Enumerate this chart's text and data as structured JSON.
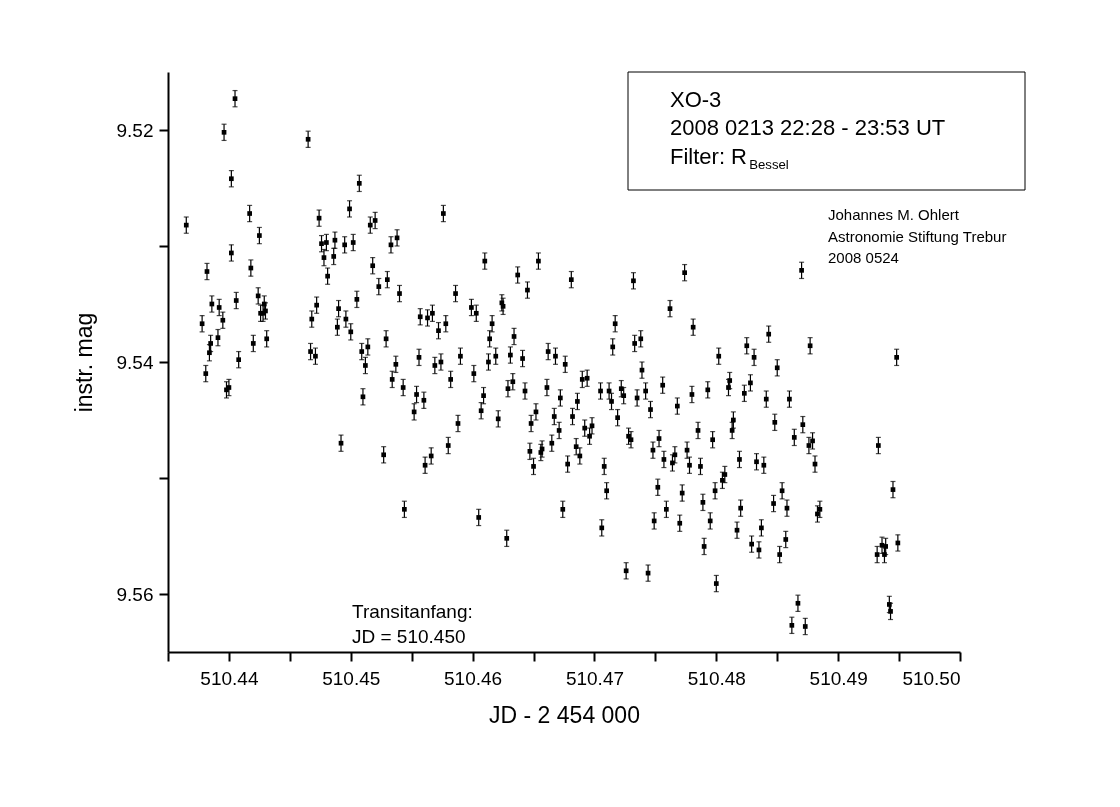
{
  "chart_data": {
    "type": "scatter",
    "xlabel": "JD - 2 454 000",
    "ylabel": "instr. mag",
    "marker": "square",
    "xlim": [
      510.435,
      510.5
    ],
    "ylim": [
      9.565,
      9.515
    ],
    "xticks": [
      {
        "value": 510.435,
        "label": null
      },
      510.44,
      {
        "value": 510.445,
        "label": null
      },
      510.45,
      {
        "value": 510.455,
        "label": null
      },
      510.46,
      {
        "value": 510.465,
        "label": null
      },
      510.47,
      {
        "value": 510.475,
        "label": null
      },
      510.48,
      {
        "value": 510.485,
        "label": null
      },
      510.49,
      {
        "value": 510.495,
        "label": null
      },
      {
        "value": 510.5,
        "label": "510.50"
      }
    ],
    "yticks": [
      9.52,
      {
        "value": 9.53,
        "label": null
      },
      9.54,
      {
        "value": 9.55,
        "label": null
      },
      9.56
    ],
    "annotations": [
      "XO-3",
      "2008 0213   22:28 - 23:53 UT",
      "Filter: R$_{Bessel}$",
      "Johannes M. Ohlert",
      "Astronomie Stiftung Trebur",
      "2008 0524",
      "Transitanfang:",
      "JD = 510.450"
    ],
    "x": [
      510.4365,
      510.4378,
      510.4381,
      510.4382,
      510.4384,
      510.4385,
      510.4386,
      510.4391,
      510.4392,
      510.4395,
      510.4396,
      510.4398,
      510.44,
      510.4402,
      510.4402,
      510.4405,
      510.4406,
      510.4408,
      510.4417,
      510.4418,
      510.442,
      510.4424,
      510.4425,
      510.4426,
      510.4428,
      510.4429,
      510.443,
      510.4431,
      510.4465,
      510.4467,
      510.4468,
      510.4471,
      510.4472,
      510.4474,
      510.4476,
      510.4478,
      510.448,
      510.4481,
      510.4486,
      510.4487,
      510.4489,
      510.449,
      510.4492,
      510.4495,
      510.4496,
      510.4499,
      510.45,
      510.4502,
      510.4505,
      510.4507,
      510.4509,
      510.451,
      510.4512,
      510.4514,
      510.4516,
      510.4518,
      510.452,
      510.4523,
      510.4527,
      510.4529,
      510.453,
      510.4533,
      510.4534,
      510.4537,
      510.4538,
      510.454,
      510.4543,
      510.4544,
      510.4552,
      510.4554,
      510.4556,
      510.4557,
      510.456,
      510.4561,
      510.4563,
      510.4566,
      510.4567,
      510.4569,
      510.4572,
      510.4574,
      510.4576,
      510.4578,
      510.458,
      510.4582,
      510.4586,
      510.4588,
      510.459,
      510.4599,
      510.4601,
      510.4603,
      510.4605,
      510.4607,
      510.4609,
      510.461,
      510.4613,
      510.4614,
      510.4616,
      510.4619,
      510.4621,
      510.4624,
      510.4625,
      510.4628,
      510.4629,
      510.4631,
      510.4633,
      510.4634,
      510.4637,
      510.4641,
      510.4643,
      510.4645,
      510.4647,
      510.4648,
      510.465,
      510.4652,
      510.4654,
      510.4656,
      510.4657,
      510.4661,
      510.4662,
      510.4665,
      510.4667,
      510.4668,
      510.4671,
      510.4672,
      510.4674,
      510.4676,
      510.4678,
      510.4681,
      510.4682,
      510.4685,
      510.4686,
      510.4688,
      510.469,
      510.4692,
      510.4694,
      510.4696,
      510.4698,
      510.4705,
      510.4706,
      510.4708,
      510.471,
      510.4712,
      510.4714,
      510.4715,
      510.4717,
      510.4719,
      510.4722,
      510.4724,
      510.4726,
      510.4728,
      510.473,
      510.4732,
      510.4733,
      510.4735,
      510.4738,
      510.4739,
      510.4742,
      510.4744,
      510.4746,
      510.4748,
      510.4749,
      510.4752,
      510.4753,
      510.4756,
      510.4757,
      510.4759,
      510.4762,
      510.4764,
      510.4766,
      510.4768,
      510.477,
      510.4772,
      510.4774,
      510.4776,
      510.4778,
      510.478,
      510.4781,
      510.4785,
      510.4787,
      510.4789,
      510.479,
      510.4793,
      510.4795,
      510.4797,
      510.4799,
      510.48,
      510.4802,
      510.4805,
      510.4807,
      510.481,
      510.4811,
      510.4813,
      510.4814,
      510.4817,
      510.4819,
      510.482,
      510.4823,
      510.4825,
      510.4828,
      510.4829,
      510.4831,
      510.4833,
      510.4835,
      510.4837,
      510.4839,
      510.4841,
      510.4843,
      510.4847,
      510.4848,
      510.485,
      510.4852,
      510.4854,
      510.4857,
      510.4858,
      510.486,
      510.4862,
      510.4864,
      510.4867,
      510.487,
      510.4871,
      510.4873,
      510.4876,
      510.4877,
      510.4879,
      510.4881,
      510.4883,
      510.4885,
      510.4932,
      510.4933,
      510.4936,
      510.4938,
      510.4939,
      510.4942,
      510.4943,
      510.4945,
      510.4948,
      510.4949
    ],
    "series": [
      {
        "color": "#000000",
        "values": [
          9.5282,
          9.5367,
          9.541,
          9.5322,
          9.5392,
          9.5384,
          9.535,
          9.5379,
          9.5353,
          9.5364,
          9.5202,
          9.5424,
          9.5422,
          9.5306,
          9.5242,
          9.5173,
          9.5347,
          9.5398,
          9.5272,
          9.5319,
          9.5384,
          9.5343,
          9.5291,
          9.5358,
          9.5358,
          9.535,
          9.5356,
          9.538,
          9.5208,
          9.5391,
          9.5363,
          9.5395,
          9.5351,
          9.5276,
          9.5298,
          9.531,
          9.5297,
          9.5326,
          9.5309,
          9.5295,
          9.537,
          9.5354,
          9.547,
          9.5299,
          9.5363,
          9.5268,
          9.5374,
          9.5297,
          9.5346,
          9.5246,
          9.5391,
          9.543,
          9.5403,
          9.5387,
          9.5282,
          9.5317,
          9.5278,
          9.5335,
          9.548,
          9.538,
          9.5329,
          9.5299,
          9.5415,
          9.5402,
          9.5293,
          9.5341,
          9.5422,
          9.5527,
          9.5443,
          9.5428,
          9.5396,
          9.5361,
          9.5433,
          9.5489,
          9.5362,
          9.5481,
          9.5358,
          9.5403,
          9.5373,
          9.54,
          9.5272,
          9.5367,
          9.5472,
          9.5415,
          9.5341,
          9.5453,
          9.5395,
          9.5353,
          9.541,
          9.5358,
          9.5534,
          9.5442,
          9.5429,
          9.5313,
          9.54,
          9.538,
          9.5367,
          9.5395,
          9.5449,
          9.5349,
          9.5352,
          9.5552,
          9.5423,
          9.5394,
          9.5417,
          9.5378,
          9.5325,
          9.5397,
          9.5425,
          9.5338,
          9.5477,
          9.5453,
          9.549,
          9.5443,
          9.5313,
          9.5478,
          9.5475,
          9.5422,
          9.5391,
          9.547,
          9.5447,
          9.5395,
          9.5459,
          9.5431,
          9.5527,
          9.5402,
          9.5488,
          9.5329,
          9.5447,
          9.5473,
          9.5434,
          9.5481,
          9.5415,
          9.5457,
          9.5414,
          9.5464,
          9.5455,
          9.5425,
          9.5543,
          9.549,
          9.5511,
          9.5425,
          9.5434,
          9.5387,
          9.5367,
          9.5448,
          9.5423,
          9.5429,
          9.558,
          9.5464,
          9.5467,
          9.533,
          9.5384,
          9.5431,
          9.538,
          9.5407,
          9.5425,
          9.5582,
          9.5441,
          9.5476,
          9.5537,
          9.5508,
          9.5466,
          9.542,
          9.5484,
          9.5527,
          9.5354,
          9.5487,
          9.548,
          9.5438,
          9.5539,
          9.5513,
          9.5323,
          9.5476,
          9.5489,
          9.5428,
          9.537,
          9.5459,
          9.549,
          9.5521,
          9.5559,
          9.5424,
          9.5537,
          9.5467,
          9.5511,
          9.5591,
          9.5395,
          9.5502,
          9.5497,
          9.5422,
          9.5416,
          9.5459,
          9.545,
          9.5545,
          9.5484,
          9.5526,
          9.5427,
          9.5386,
          9.5418,
          9.5557,
          9.5396,
          9.5486,
          9.5562,
          9.5543,
          9.5489,
          9.5432,
          9.5376,
          9.5522,
          9.5452,
          9.5405,
          9.5566,
          9.5511,
          9.5553,
          9.5526,
          9.5432,
          9.5627,
          9.5465,
          9.5608,
          9.5321,
          9.5454,
          9.5628,
          9.5472,
          9.5386,
          9.5468,
          9.5488,
          9.5531,
          9.5527,
          9.5566,
          9.5472,
          9.5558,
          9.5566,
          9.5559,
          9.5609,
          9.5615,
          9.551,
          9.5396,
          9.5556
        ],
        "errors": [
          0.0007,
          0.0007,
          0.0007,
          0.0007,
          0.0007,
          0.0007,
          0.0007,
          0.0007,
          0.0007,
          0.0007,
          0.0007,
          0.0007,
          0.0007,
          0.0007,
          0.0007,
          0.0007,
          0.0007,
          0.0007,
          0.0007,
          0.0007,
          0.0007,
          0.0007,
          0.0007,
          0.0007,
          0.0007,
          0.0007,
          0.0007,
          0.0007,
          0.0007,
          0.0007,
          0.0007,
          0.0007,
          0.0007,
          0.0007,
          0.0007,
          0.0007,
          0.0007,
          0.0007,
          0.0007,
          0.0007,
          0.0007,
          0.0007,
          0.0007,
          0.0007,
          0.0007,
          0.0007,
          0.0007,
          0.0007,
          0.0007,
          0.0007,
          0.0007,
          0.0007,
          0.0007,
          0.0007,
          0.0007,
          0.0007,
          0.0007,
          0.0007,
          0.0007,
          0.0007,
          0.0007,
          0.0007,
          0.0007,
          0.0007,
          0.0007,
          0.0007,
          0.0007,
          0.0007,
          0.0007,
          0.0007,
          0.0007,
          0.0007,
          0.0007,
          0.0007,
          0.0007,
          0.0007,
          0.0007,
          0.0007,
          0.0007,
          0.0007,
          0.0007,
          0.0007,
          0.0007,
          0.0007,
          0.0007,
          0.0007,
          0.0007,
          0.0007,
          0.0007,
          0.0007,
          0.0007,
          0.0007,
          0.0007,
          0.0007,
          0.0007,
          0.0007,
          0.0007,
          0.0007,
          0.0007,
          0.0007,
          0.0007,
          0.0007,
          0.0007,
          0.0007,
          0.0007,
          0.0007,
          0.0007,
          0.0007,
          0.0007,
          0.0007,
          0.0007,
          0.0007,
          0.0007,
          0.0007,
          0.0007,
          0.0007,
          0.0007,
          0.0007,
          0.0007,
          0.0007,
          0.0007,
          0.0007,
          0.0007,
          0.0007,
          0.0007,
          0.0007,
          0.0007,
          0.0007,
          0.0007,
          0.0007,
          0.0007,
          0.0007,
          0.0007,
          0.0007,
          0.0007,
          0.0007,
          0.0007,
          0.0007,
          0.0007,
          0.0007,
          0.0007,
          0.0007,
          0.0007,
          0.0007,
          0.0007,
          0.0007,
          0.0007,
          0.0007,
          0.0007,
          0.0007,
          0.0007,
          0.0007,
          0.0007,
          0.0007,
          0.0007,
          0.0007,
          0.0007,
          0.0007,
          0.0007,
          0.0007,
          0.0007,
          0.0007,
          0.0007,
          0.0007,
          0.0007,
          0.0007,
          0.0007,
          0.0007,
          0.0007,
          0.0007,
          0.0007,
          0.0007,
          0.0007,
          0.0007,
          0.0007,
          0.0007,
          0.0007,
          0.0007,
          0.0007,
          0.0007,
          0.0007,
          0.0007,
          0.0007,
          0.0007,
          0.0007,
          0.0007,
          0.0007,
          0.0007,
          0.0007,
          0.0007,
          0.0007,
          0.0007,
          0.0007,
          0.0007,
          0.0007,
          0.0007,
          0.0007,
          0.0007,
          0.0007,
          0.0007,
          0.0007,
          0.0007,
          0.0007,
          0.0007,
          0.0007,
          0.0007,
          0.0007,
          0.0007,
          0.0007,
          0.0007,
          0.0007,
          0.0007,
          0.0007,
          0.0007,
          0.0007,
          0.0007,
          0.0007,
          0.0007,
          0.0007,
          0.0007,
          0.0007,
          0.0007,
          0.0007,
          0.0007,
          0.0007,
          0.0007,
          0.0007,
          0.0007,
          0.0007,
          0.0007,
          0.0007,
          0.0007,
          0.0007,
          0.0007,
          0.0007,
          0.0007,
          0.0007
        ]
      }
    ]
  }
}
